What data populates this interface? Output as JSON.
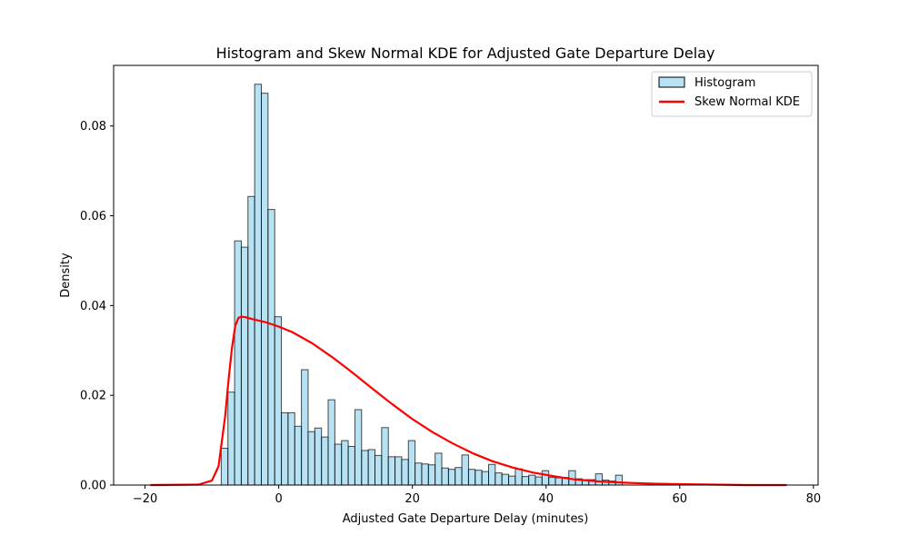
{
  "chart_data": {
    "type": "bar",
    "title": "Histogram and Skew Normal KDE for Adjusted Gate Departure Delay",
    "xlabel": "Adjusted Gate Departure Delay (minutes)",
    "ylabel": "Density",
    "xlim": [
      -24.7,
      80.7
    ],
    "ylim": [
      0,
      0.0935
    ],
    "x_ticks": [
      -20,
      0,
      20,
      40,
      60,
      80
    ],
    "y_ticks": [
      0.0,
      0.02,
      0.04,
      0.06,
      0.08
    ],
    "x_tick_labels": [
      "−20",
      "0",
      "20",
      "40",
      "60",
      "80"
    ],
    "y_tick_labels": [
      "0.00",
      "0.02",
      "0.04",
      "0.06",
      "0.08"
    ],
    "grid": false,
    "legend_position": "top-right",
    "colors": {
      "bar_fill": "#87ceeb",
      "bar_edge": "#000000",
      "kde_line": "#ff0000"
    },
    "series": [
      {
        "name": "Histogram",
        "kind": "histogram",
        "bin_start": -8.6,
        "bin_width": 1.0,
        "values": [
          0.0082,
          0.0207,
          0.0544,
          0.053,
          0.0643,
          0.0893,
          0.0873,
          0.0614,
          0.0375,
          0.0161,
          0.0161,
          0.0131,
          0.0257,
          0.0119,
          0.0127,
          0.0107,
          0.019,
          0.0091,
          0.0099,
          0.0086,
          0.0168,
          0.0077,
          0.0079,
          0.0066,
          0.0128,
          0.0063,
          0.0063,
          0.0057,
          0.0099,
          0.0049,
          0.0047,
          0.0045,
          0.0071,
          0.0038,
          0.0035,
          0.0039,
          0.0067,
          0.0035,
          0.0033,
          0.003,
          0.0046,
          0.0027,
          0.0024,
          0.002,
          0.0036,
          0.0019,
          0.0022,
          0.0018,
          0.0032,
          0.0017,
          0.0016,
          0.0017,
          0.0032,
          0.0014,
          0.0012,
          0.0012,
          0.0025,
          0.0011,
          0.0009,
          0.0022
        ]
      },
      {
        "name": "Skew Normal KDE",
        "kind": "line",
        "x": [
          -19.2,
          -12,
          -10,
          -9,
          -8,
          -7.5,
          -7,
          -6.5,
          -6,
          -5.5,
          -5,
          -4,
          -2,
          0,
          2,
          5,
          8,
          11,
          14,
          17,
          20,
          23,
          26,
          29,
          32,
          35,
          38,
          41,
          44,
          48,
          52,
          56,
          60,
          65,
          70,
          76
        ],
        "y": [
          0,
          0.0001,
          0.001,
          0.0042,
          0.0155,
          0.0235,
          0.0305,
          0.0355,
          0.0373,
          0.0375,
          0.0374,
          0.037,
          0.0363,
          0.0353,
          0.0341,
          0.0316,
          0.0285,
          0.0251,
          0.0215,
          0.018,
          0.0147,
          0.0118,
          0.0093,
          0.0071,
          0.0053,
          0.0039,
          0.0028,
          0.002,
          0.0013,
          0.0008,
          0.0005,
          0.0003,
          0.0002,
          0.0001,
          0.0,
          0.0
        ]
      }
    ]
  }
}
